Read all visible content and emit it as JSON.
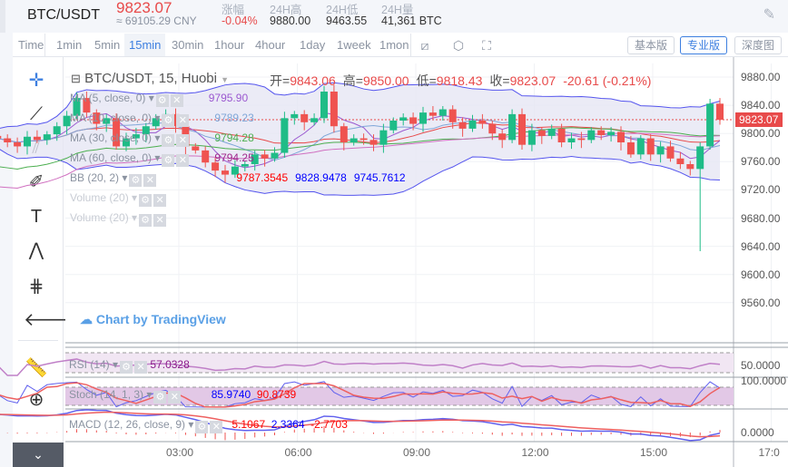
{
  "header": {
    "pair": "BTC/USDT",
    "last_price": "9823.07",
    "cny": "≈ 69105.29 CNY",
    "stats": [
      {
        "label": "涨幅",
        "value": "-0.04%",
        "color": "#e84a4a"
      },
      {
        "label": "24H高",
        "value": "9880.00"
      },
      {
        "label": "24H低",
        "value": "9463.55"
      },
      {
        "label": "24H量",
        "value": "41,361 BTC"
      }
    ]
  },
  "timeframes": [
    "Time",
    "1min",
    "5min",
    "15min",
    "30min",
    "1hour",
    "4hour",
    "1day",
    "1week",
    "1mon"
  ],
  "active_timeframe": "15min",
  "view_buttons": [
    "基本版",
    "专业版",
    "深度图"
  ],
  "active_view": "专业版",
  "chart": {
    "title": "BTC/USDT, 15, Huobi",
    "ohlc": [
      {
        "k": "开=",
        "v": "9843.06"
      },
      {
        "k": "高=",
        "v": "9850.00"
      },
      {
        "k": "低=",
        "v": "9818.43"
      },
      {
        "k": "收=",
        "v": "9823.07"
      },
      {
        "k": "",
        "v": "-20.61 (-0.21%)"
      }
    ],
    "legends": [
      {
        "name": "MA (5, close, 0)",
        "value": "9795.90",
        "color": "#9b59d0"
      },
      {
        "name": "MA (10, close, 0)",
        "value": "9789.23",
        "color": "#7fa6d8"
      },
      {
        "name": "MA (30, close, 0)",
        "value": "9794.28",
        "color": "#4caf50"
      },
      {
        "name": "MA (60, close, 0)",
        "value": "9794.25",
        "color": "#a0288c"
      },
      {
        "name": "BB (20, 2)",
        "values": [
          "9787.3545",
          "9828.9478",
          "9745.7612"
        ],
        "colors": [
          "#ff0000",
          "#0000ff",
          "#0000ff"
        ]
      },
      {
        "name": "Volume (20)"
      },
      {
        "name": "Volume (20)"
      }
    ],
    "watermark": "Chart by TradingView",
    "price_ticks": [
      "9880.00",
      "9840.00",
      "9800.00",
      "9760.00",
      "9720.00",
      "9680.00",
      "9640.00",
      "9600.00",
      "9560.00"
    ],
    "current_price_label": "9823.07",
    "rsi": {
      "name": "RSI (14)",
      "value": "57.0328",
      "tick": "50.0000"
    },
    "stoch": {
      "name": "Stoch (14, 1, 3)",
      "k": "85.9740",
      "d": "90.8739",
      "tick": "100.0000"
    },
    "macd": {
      "name": "MACD (12, 26, close, 9)",
      "values": [
        "5.1067",
        "2.3364",
        "-2.7703"
      ],
      "tick": "0.0000"
    },
    "time_ticks": [
      "03:00",
      "06:00",
      "09:00",
      "12:00",
      "15:00",
      "17:0"
    ],
    "colors": {
      "up": "#26a69a",
      "up_fill": "#1fbc87",
      "down": "#ef5350",
      "bb_fill": "#e6e6f4",
      "bb_line": "#5555ee"
    }
  },
  "chart_data": {
    "type": "candlestick",
    "interval": "15min",
    "closes": [
      9800,
      9795,
      9790,
      9802,
      9798,
      9805,
      9815,
      9828,
      9850,
      9832,
      9818,
      9825,
      9790,
      9800,
      9805,
      9815,
      9825,
      9830,
      9815,
      9790,
      9785,
      9770,
      9760,
      9755,
      9765,
      9768,
      9780,
      9775,
      9782,
      9825,
      9830,
      9820,
      9825,
      9858,
      9815,
      9795,
      9800,
      9798,
      9792,
      9810,
      9822,
      9826,
      9818,
      9832,
      9828,
      9836,
      9820,
      9812,
      9822,
      9818,
      9806,
      9798,
      9830,
      9792,
      9810,
      9803,
      9812,
      9795,
      9800,
      9798,
      9810,
      9804,
      9808,
      9795,
      9780,
      9800,
      9780,
      9790,
      9775,
      9768,
      9762,
      9790,
      9843,
      9823
    ]
  }
}
